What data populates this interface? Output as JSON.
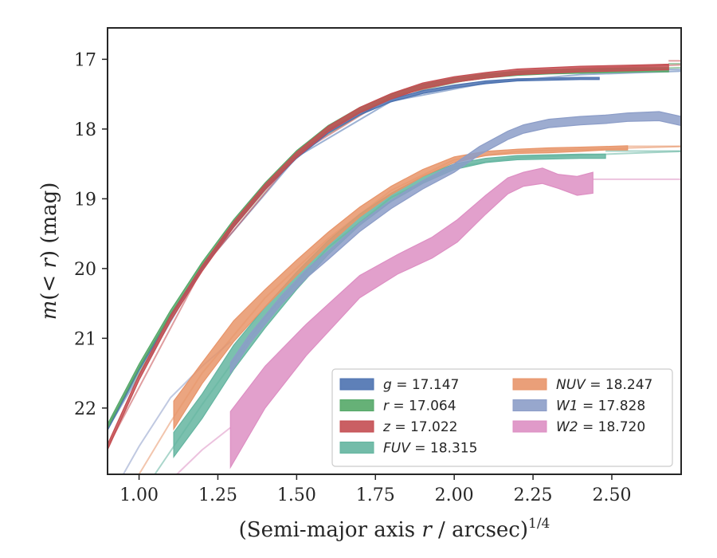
{
  "chart_data": {
    "type": "line",
    "xlabel": "(Semi-major axis r / arcsec)^{1/4}",
    "xlabel_parts": {
      "main": "(Semi-major axis ",
      "var": "r",
      "rest": " / arcsec)",
      "exp": "1/4"
    },
    "ylabel": "m(< r) (mag)",
    "xlim": [
      0.9,
      2.72
    ],
    "ylim": [
      22.95,
      16.55
    ],
    "y_inverted": true,
    "xticks": [
      1.0,
      1.25,
      1.5,
      1.75,
      2.0,
      2.25,
      2.5
    ],
    "xtick_labels": [
      "1.00",
      "1.25",
      "1.50",
      "1.75",
      "2.00",
      "2.25",
      "2.50"
    ],
    "yticks": [
      17,
      18,
      19,
      20,
      21,
      22
    ],
    "ytick_labels": [
      "17",
      "18",
      "19",
      "20",
      "21",
      "22"
    ],
    "grid": false,
    "legend_position": "lower-right",
    "series": [
      {
        "name": "g",
        "legend": "g = 17.147",
        "color": "#4c72b0",
        "x": [
          0.9,
          1.0,
          1.1,
          1.2,
          1.3,
          1.4,
          1.5,
          1.6,
          1.7,
          1.8,
          1.9,
          2.0,
          2.1,
          2.2,
          2.3,
          2.4,
          2.46
        ],
        "y_lo": [
          22.28,
          21.42,
          20.65,
          19.97,
          19.36,
          18.83,
          18.38,
          18.02,
          17.76,
          17.57,
          17.45,
          17.37,
          17.31,
          17.28,
          17.27,
          17.26,
          17.26
        ],
        "y_hi": [
          22.32,
          21.46,
          20.69,
          20.01,
          19.4,
          18.87,
          18.42,
          18.06,
          17.8,
          17.61,
          17.49,
          17.41,
          17.35,
          17.31,
          17.3,
          17.29,
          17.29
        ],
        "asymptote": 17.147,
        "curve_x": [
          0.9,
          1.2,
          1.5,
          1.8,
          2.1,
          2.4,
          2.72
        ],
        "curve_y": [
          22.3,
          19.99,
          18.4,
          17.6,
          17.34,
          17.22,
          17.17
        ]
      },
      {
        "name": "r",
        "legend": "r = 17.064",
        "color": "#55a868",
        "x": [
          0.9,
          1.0,
          1.1,
          1.2,
          1.3,
          1.4,
          1.5,
          1.6,
          1.7,
          1.8,
          1.9,
          2.0,
          2.1,
          2.2,
          2.3,
          2.4,
          2.5,
          2.6,
          2.68
        ],
        "y_lo": [
          22.23,
          21.37,
          20.6,
          19.91,
          19.3,
          18.77,
          18.31,
          17.95,
          17.69,
          17.5,
          17.36,
          17.27,
          17.21,
          17.17,
          17.15,
          17.14,
          17.13,
          17.12,
          17.12
        ],
        "y_hi": [
          22.29,
          21.43,
          20.66,
          19.97,
          19.36,
          18.83,
          18.37,
          18.01,
          17.75,
          17.56,
          17.42,
          17.33,
          17.27,
          17.23,
          17.21,
          17.2,
          17.19,
          17.18,
          17.18
        ],
        "asymptote": 17.064,
        "curve_x": [
          0.9,
          1.2,
          1.5,
          1.8,
          2.1,
          2.4,
          2.72
        ],
        "curve_y": [
          22.26,
          19.94,
          18.34,
          17.53,
          17.24,
          17.16,
          17.12
        ]
      },
      {
        "name": "z",
        "legend": "z = 17.022",
        "color": "#c44e52",
        "x": [
          0.9,
          1.0,
          1.1,
          1.2,
          1.3,
          1.4,
          1.5,
          1.6,
          1.7,
          1.8,
          1.9,
          2.0,
          2.1,
          2.2,
          2.3,
          2.4,
          2.5,
          2.6,
          2.68
        ],
        "y_lo": [
          22.52,
          21.52,
          20.67,
          19.96,
          19.33,
          18.79,
          18.33,
          17.96,
          17.69,
          17.49,
          17.34,
          17.25,
          17.19,
          17.14,
          17.12,
          17.1,
          17.09,
          17.08,
          17.07
        ],
        "y_hi": [
          22.6,
          21.6,
          20.75,
          20.04,
          19.41,
          18.87,
          18.41,
          18.04,
          17.77,
          17.57,
          17.42,
          17.33,
          17.27,
          17.22,
          17.2,
          17.18,
          17.17,
          17.16,
          17.15
        ],
        "asymptote": 17.022,
        "curve_x": [
          0.9,
          1.2,
          1.5,
          1.8,
          2.1,
          2.4,
          2.72
        ],
        "curve_y": [
          22.56,
          20.0,
          18.37,
          17.53,
          17.23,
          17.13,
          17.08
        ]
      },
      {
        "name": "FUV",
        "legend": "FUV = 18.315",
        "color": "#64b5a0",
        "x": [
          1.11,
          1.2,
          1.3,
          1.4,
          1.5,
          1.6,
          1.7,
          1.8,
          1.9,
          2.0,
          2.1,
          2.2,
          2.3,
          2.4,
          2.48
        ],
        "y_lo": [
          22.35,
          21.8,
          21.1,
          20.55,
          20.05,
          19.6,
          19.22,
          18.92,
          18.68,
          18.5,
          18.42,
          18.38,
          18.37,
          18.36,
          18.36
        ],
        "y_hi": [
          22.7,
          22.15,
          21.45,
          20.85,
          20.3,
          19.8,
          19.38,
          19.04,
          18.78,
          18.58,
          18.48,
          18.44,
          18.43,
          18.42,
          18.42
        ],
        "asymptote": 18.315,
        "curve_x": [
          1.05,
          1.2,
          1.4,
          1.6,
          1.8,
          2.0,
          2.2,
          2.72
        ],
        "curve_y": [
          22.95,
          21.95,
          20.7,
          19.7,
          18.98,
          18.54,
          18.41,
          18.32
        ]
      },
      {
        "name": "NUV",
        "legend": "NUV = 18.247",
        "color": "#e8956a",
        "x": [
          1.11,
          1.2,
          1.3,
          1.4,
          1.5,
          1.6,
          1.7,
          1.8,
          1.9,
          2.0,
          2.1,
          2.2,
          2.3,
          2.4,
          2.48,
          2.55
        ],
        "y_lo": [
          21.9,
          21.35,
          20.75,
          20.3,
          19.88,
          19.48,
          19.12,
          18.82,
          18.58,
          18.4,
          18.32,
          18.29,
          18.27,
          18.26,
          18.25,
          18.24
        ],
        "y_hi": [
          22.3,
          21.65,
          21.05,
          20.55,
          20.1,
          19.66,
          19.26,
          18.94,
          18.68,
          18.48,
          18.38,
          18.35,
          18.34,
          18.32,
          18.3,
          18.3
        ],
        "asymptote": 18.247,
        "curve_x": [
          1.0,
          1.1,
          1.2,
          1.4,
          1.6,
          1.8,
          2.0,
          2.2,
          2.72
        ],
        "curve_y": [
          22.95,
          22.2,
          21.5,
          20.42,
          19.57,
          18.88,
          18.44,
          18.32,
          18.25
        ]
      },
      {
        "name": "W1",
        "legend": "W1 = 17.828",
        "color": "#8c9dc8",
        "x": [
          1.29,
          1.35,
          1.45,
          1.53,
          1.6,
          1.7,
          1.8,
          1.9,
          2.0,
          2.08,
          2.17,
          2.22,
          2.3,
          2.4,
          2.48,
          2.55,
          2.65,
          2.72
        ],
        "y_lo": [
          21.35,
          20.95,
          20.4,
          20.02,
          19.75,
          19.35,
          19.02,
          18.74,
          18.5,
          18.25,
          18.03,
          17.94,
          17.86,
          17.82,
          17.8,
          17.77,
          17.75,
          17.82
        ],
        "y_hi": [
          21.5,
          21.08,
          20.52,
          20.14,
          19.87,
          19.47,
          19.14,
          18.86,
          18.62,
          18.37,
          18.15,
          18.06,
          17.98,
          17.94,
          17.92,
          17.89,
          17.88,
          17.95
        ],
        "asymptote": 17.828,
        "curve_x": [
          0.95,
          1.0,
          1.1,
          1.2,
          1.29
        ],
        "curve_y": [
          22.95,
          22.55,
          21.85,
          21.4,
          21.05
        ]
      },
      {
        "name": "W2",
        "legend": "W2 = 18.720",
        "color": "#dd8fc3",
        "x": [
          1.29,
          1.4,
          1.53,
          1.7,
          1.82,
          1.93,
          2.01,
          2.1,
          2.17,
          2.22,
          2.28,
          2.33,
          2.39,
          2.44
        ],
        "y_lo": [
          22.05,
          21.4,
          20.8,
          20.1,
          19.8,
          19.55,
          19.3,
          18.95,
          18.7,
          18.62,
          18.56,
          18.65,
          18.68,
          18.62
        ],
        "y_hi": [
          22.85,
          22.0,
          21.25,
          20.42,
          20.08,
          19.85,
          19.62,
          19.22,
          18.93,
          18.82,
          18.78,
          18.85,
          18.95,
          18.92
        ],
        "asymptote": 18.72,
        "curve_x": [
          1.12,
          1.2,
          1.29
        ],
        "curve_y": [
          22.95,
          22.6,
          22.28
        ]
      }
    ]
  }
}
